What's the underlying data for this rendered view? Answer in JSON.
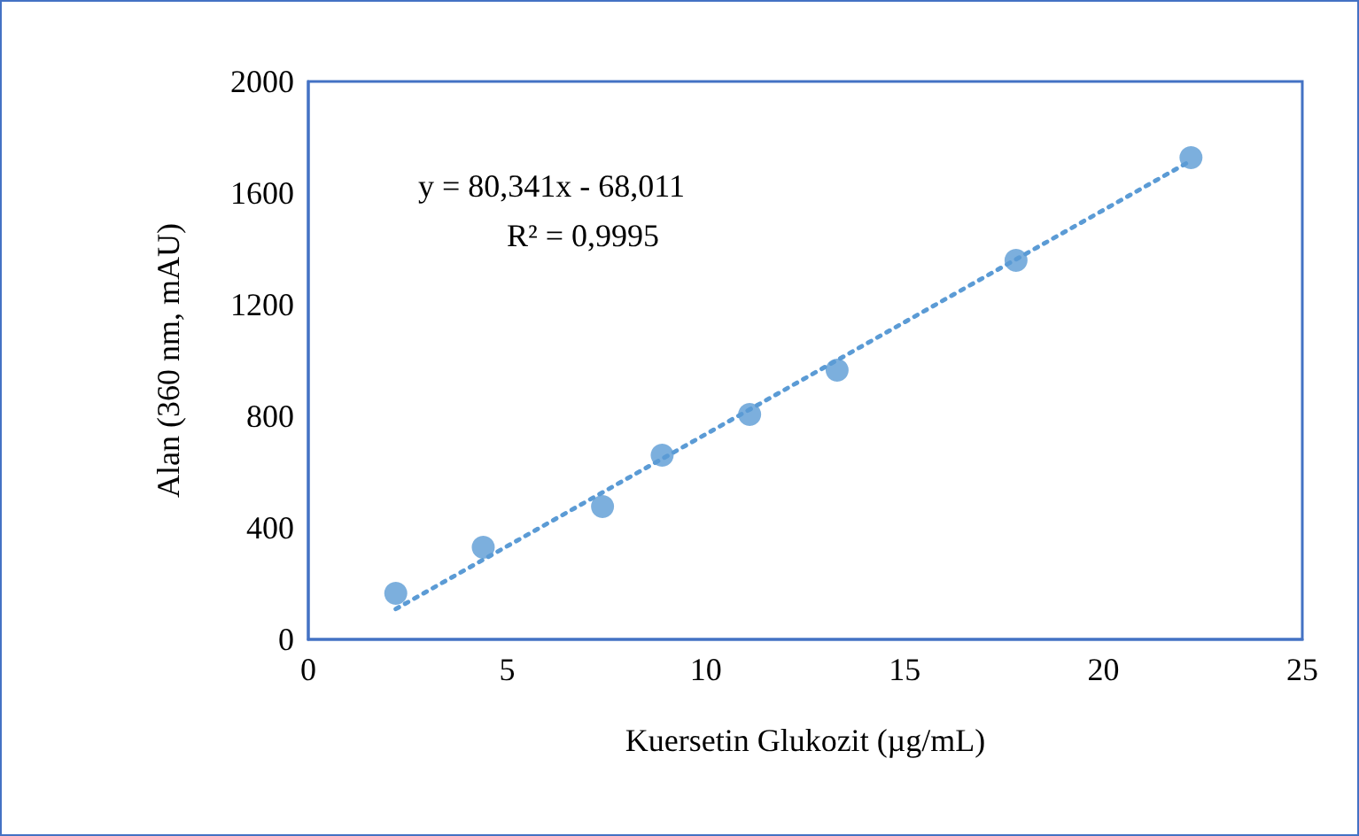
{
  "chart_data": {
    "type": "scatter",
    "xlabel": "Kuersetin Glukozit (µg/mL)",
    "ylabel": "Alan (360 nm, mAU)",
    "annotations": [
      "y = 80,341x - 68,011",
      "R² = 0,9995"
    ],
    "series": [
      {
        "color": "#5b9bd5",
        "marker": "circle",
        "x": [
          2.2,
          4.4,
          7.4,
          8.9,
          11.1,
          13.3,
          17.8,
          22.2
        ],
        "values": [
          165,
          330,
          476,
          660,
          806,
          965,
          1359,
          1727
        ]
      },
      {
        "type": "line",
        "color": "#5b9bd5",
        "line_style": "dotted",
        "marker": "none",
        "x": [
          2.2,
          22.2
        ],
        "values": [
          109,
          1716
        ]
      }
    ],
    "xlim": [
      0,
      25
    ],
    "xticks": [
      0,
      5,
      10,
      15,
      20,
      25
    ],
    "ylim": [
      0,
      2000
    ],
    "yticks": [
      0,
      400,
      800,
      1200,
      1600,
      2000
    ],
    "grid": false
  }
}
